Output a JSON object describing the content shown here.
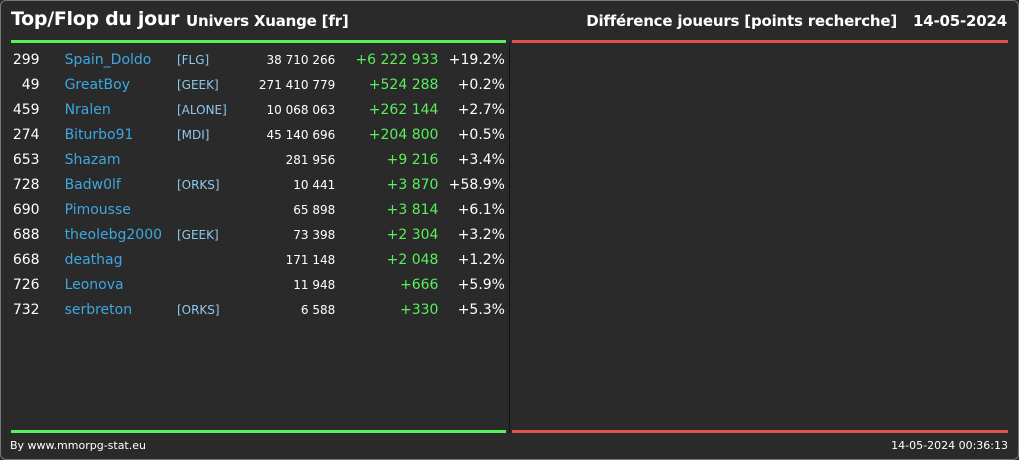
{
  "header": {
    "title": "Top/Flop du jour",
    "universe": "Univers Xuange [fr]",
    "mode": "Différence joueurs [points recherche]",
    "date": "14-05-2024"
  },
  "top_rows": [
    {
      "rank": "299",
      "name": "Spain_Doldo",
      "ally": "[FLG]",
      "points": "38 710 266",
      "diff": "+6 222 933",
      "pct": "+19.2%"
    },
    {
      "rank": "49",
      "name": "GreatBoy",
      "ally": "[GEEK]",
      "points": "271 410 779",
      "diff": "+524 288",
      "pct": "+0.2%"
    },
    {
      "rank": "459",
      "name": "Nralen",
      "ally": "[ALONE]",
      "points": "10 068 063",
      "diff": "+262 144",
      "pct": "+2.7%"
    },
    {
      "rank": "274",
      "name": "Biturbo91",
      "ally": "[MDI]",
      "points": "45 140 696",
      "diff": "+204 800",
      "pct": "+0.5%"
    },
    {
      "rank": "653",
      "name": "Shazam",
      "ally": "",
      "points": "281 956",
      "diff": "+9 216",
      "pct": "+3.4%"
    },
    {
      "rank": "728",
      "name": "Badw0lf",
      "ally": "[ORKS]",
      "points": "10 441",
      "diff": "+3 870",
      "pct": "+58.9%"
    },
    {
      "rank": "690",
      "name": "Pimousse",
      "ally": "",
      "points": "65 898",
      "diff": "+3 814",
      "pct": "+6.1%"
    },
    {
      "rank": "688",
      "name": "theolebg2000",
      "ally": "[GEEK]",
      "points": "73 398",
      "diff": "+2 304",
      "pct": "+3.2%"
    },
    {
      "rank": "668",
      "name": "deathag",
      "ally": "",
      "points": "171 148",
      "diff": "+2 048",
      "pct": "+1.2%"
    },
    {
      "rank": "726",
      "name": "Leonova",
      "ally": "",
      "points": "11 948",
      "diff": "+666",
      "pct": "+5.9%"
    },
    {
      "rank": "732",
      "name": "serbreton",
      "ally": "[ORKS]",
      "points": "6 588",
      "diff": "+330",
      "pct": "+5.3%"
    }
  ],
  "footer": {
    "credit": "By www.mmorpg-stat.eu",
    "timestamp": "14-05-2024 00:36:13"
  },
  "colors": {
    "top_line": "#5af05a",
    "flop_line": "#e0524a",
    "player_link": "#3ea7e0",
    "ally_text": "#8fc8ee"
  }
}
